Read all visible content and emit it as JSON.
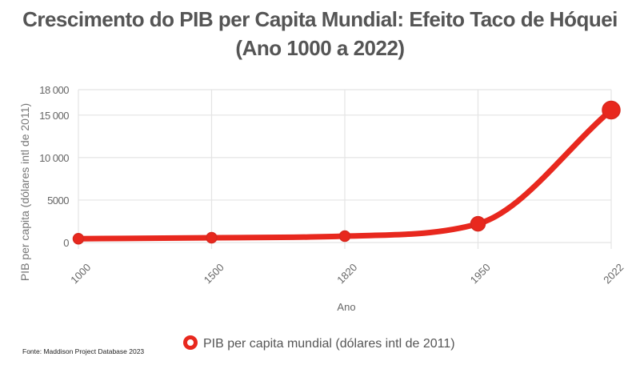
{
  "chart_data": {
    "type": "line",
    "title": "Crescimento do PIB per Capita Mundial: Efeito Taco de Hóquei (Ano 1000 a 2022)",
    "xlabel": "Ano",
    "ylabel": "PIB per capita (dólares intl de 2011)",
    "categories": [
      "1000",
      "1500",
      "1820",
      "1950",
      "2022"
    ],
    "series": [
      {
        "name": "PIB per capita mundial (dólares intl de 2011)",
        "values": [
          450,
          560,
          750,
          2200,
          15600
        ],
        "color": "#e8281e"
      }
    ],
    "ylim": [
      0,
      18000
    ],
    "yticks": [
      0,
      5000,
      10000,
      15000,
      18000
    ],
    "ytick_labels": [
      "0",
      "5000",
      "10 000",
      "15 000",
      "18 000"
    ],
    "grid": true,
    "legend": "bottom",
    "source": "Fonte: Maddison Project Database 2023"
  }
}
